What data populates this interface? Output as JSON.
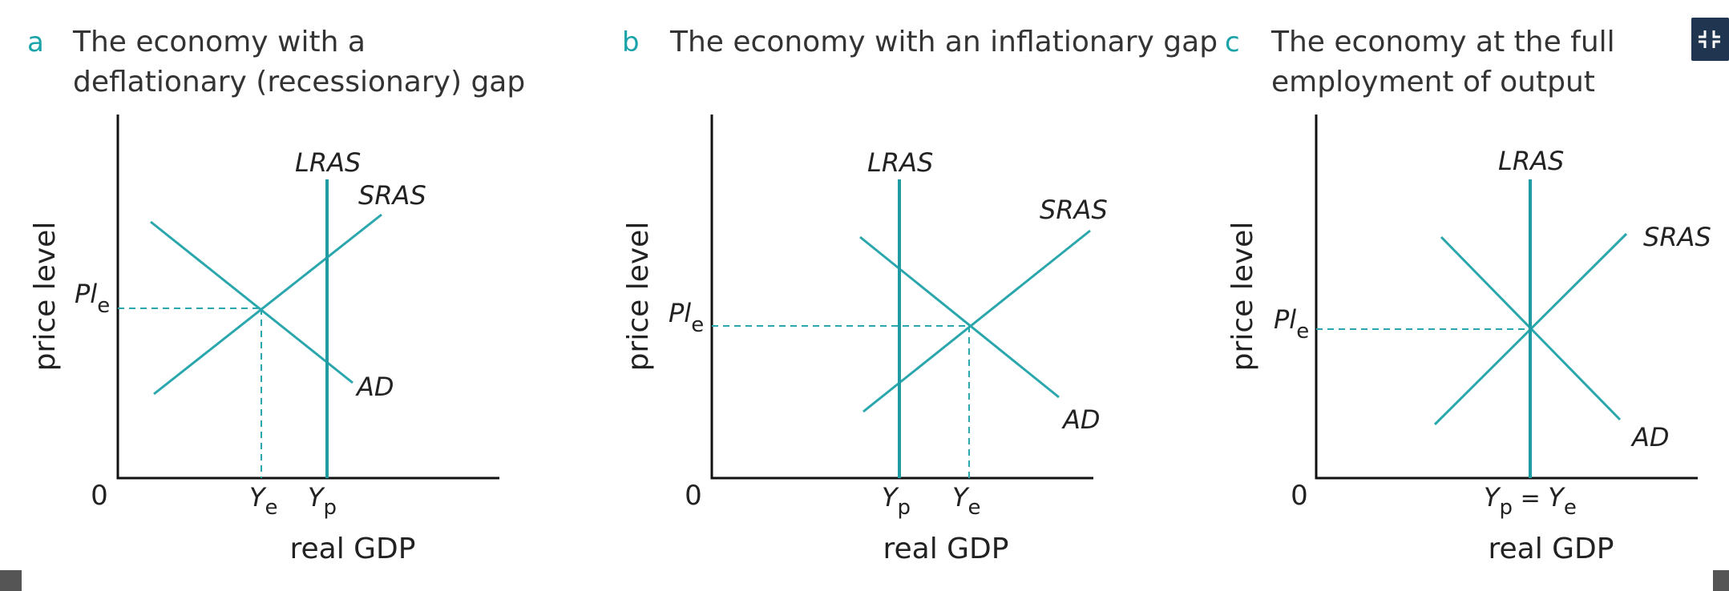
{
  "colors": {
    "curve": "#2aa7ad",
    "accent": "#1aa3a8",
    "axis": "#111111",
    "button": "#1f3550"
  },
  "icons": {
    "top_right": "collapse-icon"
  },
  "panels": [
    {
      "letter": "a",
      "title_line1": "The economy with a",
      "title_line2": "deflationary (recessionary) gap",
      "y_axis": "price level",
      "x_axis": "real GDP",
      "origin": "0",
      "price_label": "Pl",
      "price_sub": "e",
      "lras": "LRAS",
      "sras": "SRAS",
      "ad": "AD",
      "x_tick1_main": "Y",
      "x_tick1_sub": "e",
      "x_tick2_main": "Y",
      "x_tick2_sub": "p"
    },
    {
      "letter": "b",
      "title_line1": "The economy with an inflationary gap",
      "title_line2": "",
      "y_axis": "price level",
      "x_axis": "real GDP",
      "origin": "0",
      "price_label": "Pl",
      "price_sub": "e",
      "lras": "LRAS",
      "sras": "SRAS",
      "ad": "AD",
      "x_tick1_main": "Y",
      "x_tick1_sub": "p",
      "x_tick2_main": "Y",
      "x_tick2_sub": "e"
    },
    {
      "letter": "c",
      "title_line1": "The economy at the full",
      "title_line2": "employment of output",
      "y_axis": "price level",
      "x_axis": "real GDP",
      "origin": "0",
      "price_label": "Pl",
      "price_sub": "e",
      "lras": "LRAS",
      "sras": "SRAS",
      "ad": "AD",
      "x_tick1_main": "Y",
      "x_tick1_sub": "p",
      "x_tick_eq": " = ",
      "x_tick2_main": "Y",
      "x_tick2_sub": "e"
    }
  ]
}
